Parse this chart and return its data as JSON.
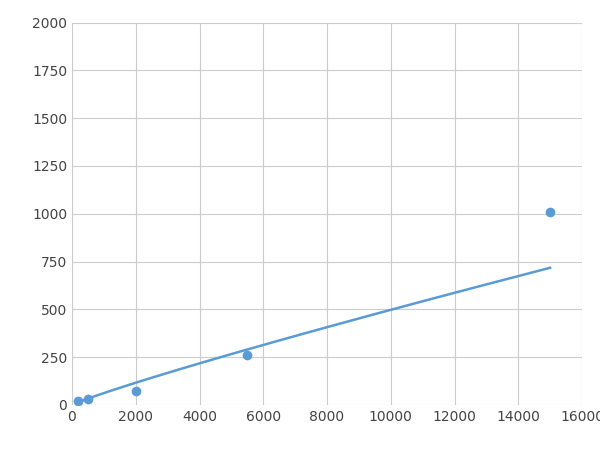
{
  "x": [
    200,
    500,
    2000,
    5500,
    15000
  ],
  "y": [
    20,
    30,
    75,
    260,
    1010
  ],
  "line_color": "#5B9BD5",
  "marker_color": "#5B9BD5",
  "marker_size": 7,
  "line_width": 1.8,
  "xlim": [
    0,
    16000
  ],
  "ylim": [
    0,
    2000
  ],
  "xticks": [
    0,
    2000,
    4000,
    6000,
    8000,
    10000,
    12000,
    14000,
    16000
  ],
  "yticks": [
    0,
    250,
    500,
    750,
    1000,
    1250,
    1500,
    1750,
    2000
  ],
  "grid": true,
  "background_color": "#ffffff"
}
